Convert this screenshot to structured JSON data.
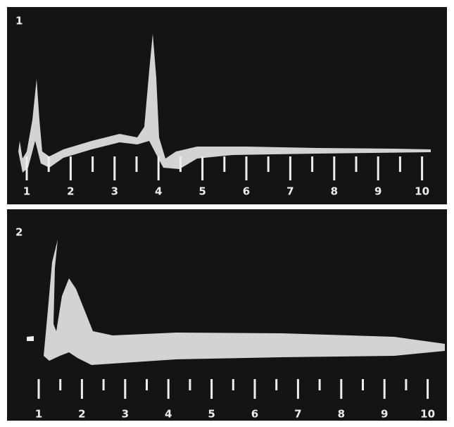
{
  "panels": [
    {
      "label": "1",
      "ticks": [
        "1",
        "2",
        "3",
        "4",
        "5",
        "6",
        "7",
        "8",
        "9",
        "10"
      ]
    },
    {
      "label": "2",
      "ticks": [
        "1",
        "2",
        "3",
        "4",
        "5",
        "6",
        "7",
        "8",
        "9",
        "10"
      ]
    }
  ]
}
